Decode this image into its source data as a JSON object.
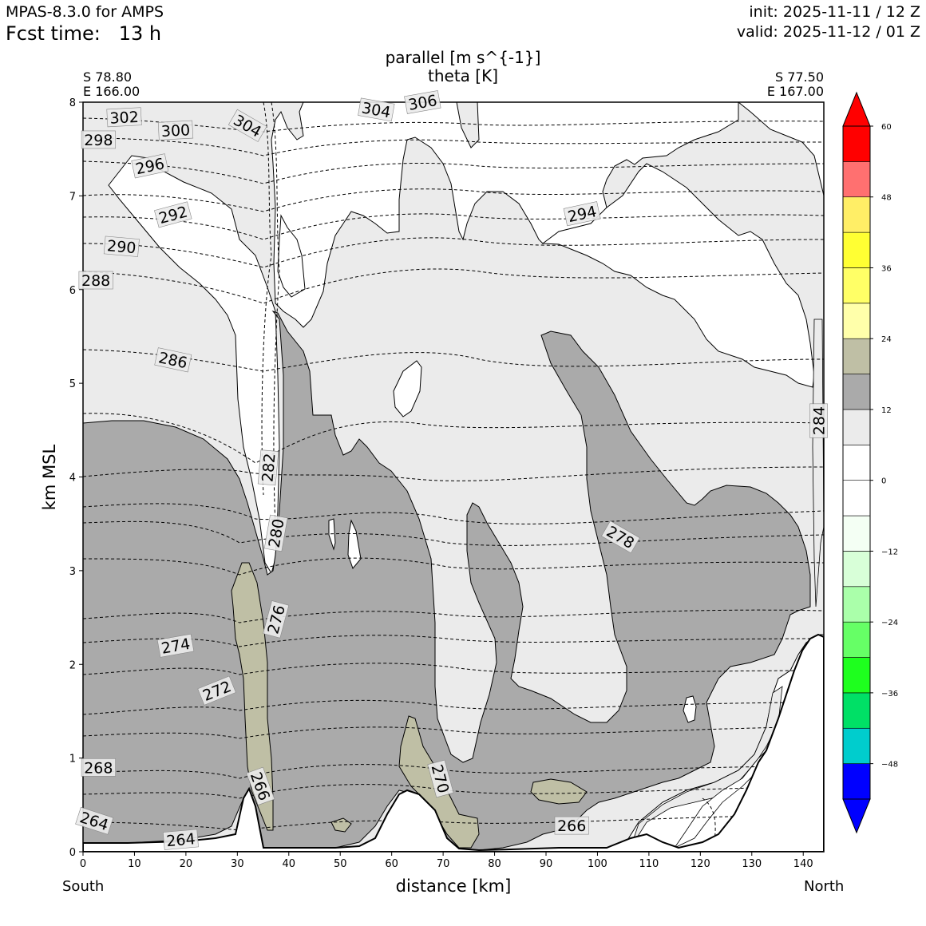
{
  "header": {
    "model": "MPAS-8.3.0 for AMPS",
    "fcst_label": "Fcst time:",
    "fcst_value": "13 h",
    "init": "init: 2025-11-11 / 12 Z",
    "valid": "valid: 2025-11-12 / 01 Z"
  },
  "endpoints": {
    "left_lat": "S 78.80",
    "left_lon": "E 166.00",
    "right_lat": "S 77.50",
    "right_lon": "E 167.00",
    "left_dir": "South",
    "right_dir": "North"
  },
  "chart_data": {
    "type": "cross-section",
    "title": "parallel [m s^{-1}]",
    "subtitle": "theta [K]",
    "xlabel": "distance [km]",
    "ylabel": "km MSL",
    "xlim": [
      0,
      144
    ],
    "ylim": [
      0,
      8
    ],
    "xticks": [
      0,
      10,
      20,
      30,
      40,
      50,
      60,
      70,
      80,
      90,
      100,
      110,
      120,
      130,
      140
    ],
    "yticks": [
      0,
      1,
      2,
      3,
      4,
      5,
      6,
      7,
      8
    ],
    "fill_colors": {
      "0-6": "#ffffff",
      "6-12": "#ebebeb",
      "12-18": "#aaaaaa",
      "18-24": "#bfbfa5"
    },
    "colorbar": {
      "ticks": [
        60,
        48,
        36,
        24,
        12,
        0,
        -12,
        -24,
        -36,
        -48
      ],
      "tick_labels": [
        "60",
        "48",
        "36",
        "24",
        "12",
        "0",
        "−12",
        "−24",
        "−36",
        "−48"
      ],
      "levels": [
        -54,
        -48,
        -42,
        -36,
        -30,
        -24,
        -18,
        -12,
        -6,
        0,
        6,
        12,
        18,
        24,
        30,
        36,
        42,
        48,
        54,
        60
      ],
      "colors": [
        "#0000ff",
        "#00cdcd",
        "#00e066",
        "#1eff1e",
        "#66ff66",
        "#aaffaa",
        "#d8ffd8",
        "#f4fff4",
        "#ffffff",
        "#ffffff",
        "#ebebeb",
        "#aaaaaa",
        "#bfbfa5",
        "#ffffaa",
        "#ffff66",
        "#ffff33",
        "#ffee66",
        "#ff7070",
        "#ff0000"
      ],
      "extend_min_color": "#0000ff",
      "extend_max_color": "#ff0000"
    },
    "theta_labels": [
      {
        "text": "302",
        "x": 8,
        "y": 7.84,
        "angle": -3
      },
      {
        "text": "300",
        "x": 18,
        "y": 7.7,
        "angle": -3
      },
      {
        "text": "298",
        "x": 3,
        "y": 7.6,
        "angle": 0
      },
      {
        "text": "296",
        "x": 13,
        "y": 7.32,
        "angle": -12
      },
      {
        "text": "292",
        "x": 17.5,
        "y": 6.8,
        "angle": -15
      },
      {
        "text": "290",
        "x": 7.5,
        "y": 6.46,
        "angle": 5
      },
      {
        "text": "288",
        "x": 2.5,
        "y": 6.1,
        "angle": 0
      },
      {
        "text": "286",
        "x": 17.5,
        "y": 5.25,
        "angle": 12
      },
      {
        "text": "304",
        "x": 32,
        "y": 7.75,
        "angle": 30
      },
      {
        "text": "304",
        "x": 57,
        "y": 7.92,
        "angle": 10
      },
      {
        "text": "306",
        "x": 66,
        "y": 8.0,
        "angle": -10
      },
      {
        "text": "294",
        "x": 97,
        "y": 6.81,
        "angle": -12
      },
      {
        "text": "284",
        "x": 143,
        "y": 4.6,
        "angle": -90
      },
      {
        "text": "282",
        "x": 36,
        "y": 4.1,
        "angle": -85
      },
      {
        "text": "280",
        "x": 37.5,
        "y": 3.4,
        "angle": -80
      },
      {
        "text": "278",
        "x": 104.5,
        "y": 3.36,
        "angle": 30
      },
      {
        "text": "276",
        "x": 37.5,
        "y": 2.48,
        "angle": -75
      },
      {
        "text": "274",
        "x": 18,
        "y": 2.2,
        "angle": -10
      },
      {
        "text": "272",
        "x": 26,
        "y": 1.72,
        "angle": -22
      },
      {
        "text": "268",
        "x": 3,
        "y": 0.9,
        "angle": 0
      },
      {
        "text": "266",
        "x": 34.5,
        "y": 0.7,
        "angle": 70
      },
      {
        "text": "270",
        "x": 69.5,
        "y": 0.78,
        "angle": 75
      },
      {
        "text": "266",
        "x": 95,
        "y": 0.28,
        "angle": 0
      },
      {
        "text": "264",
        "x": 2.2,
        "y": 0.33,
        "angle": 18
      },
      {
        "text": "264",
        "x": 19,
        "y": 0.13,
        "angle": -5
      }
    ]
  }
}
